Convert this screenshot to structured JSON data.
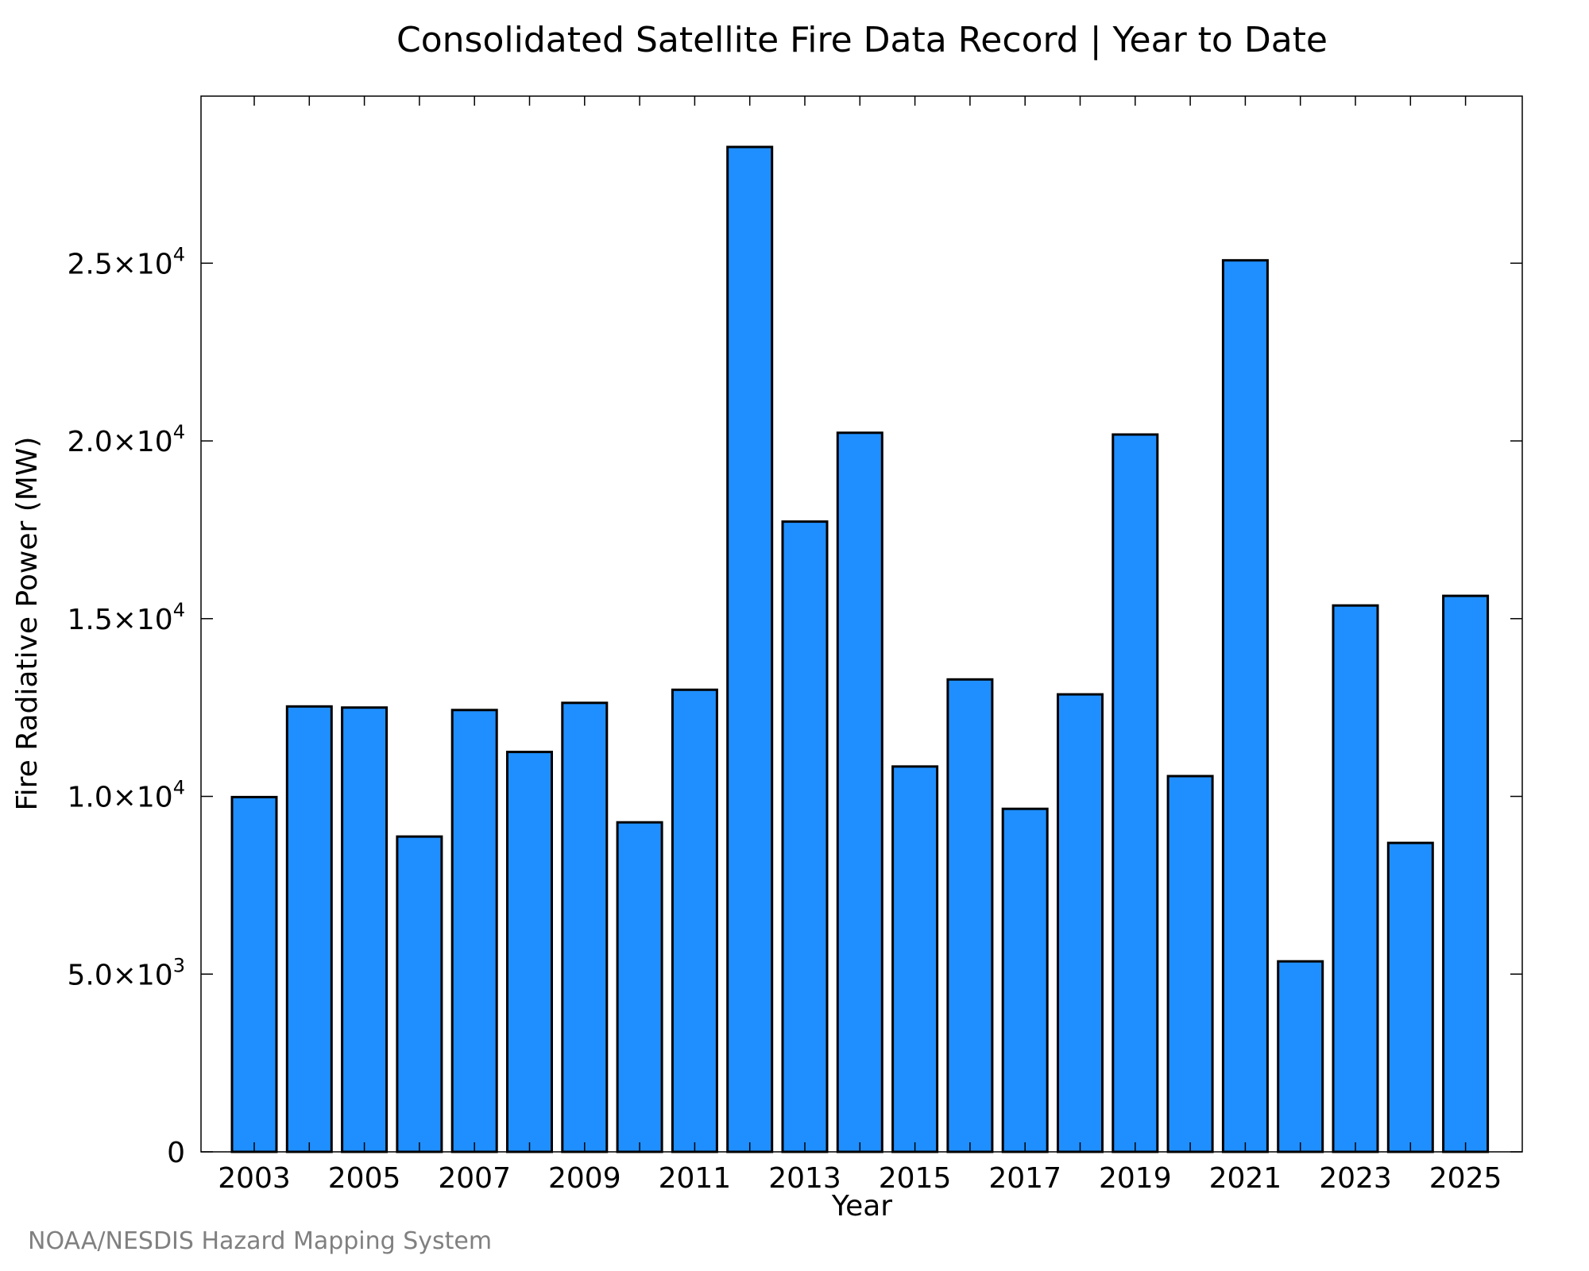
{
  "chart_data": {
    "type": "bar",
    "title": "Consolidated Satellite Fire Data Record | Year to Date",
    "xlabel": "Year",
    "ylabel": "Fire Radiative Power (MW)",
    "categories": [
      "2003",
      "2004",
      "2005",
      "2006",
      "2007",
      "2008",
      "2009",
      "2010",
      "2011",
      "2012",
      "2013",
      "2014",
      "2015",
      "2016",
      "2017",
      "2018",
      "2019",
      "2020",
      "2021",
      "2022",
      "2023",
      "2024",
      "2025"
    ],
    "values": [
      9980,
      12530,
      12500,
      8870,
      12430,
      11250,
      12630,
      9270,
      13000,
      28270,
      17730,
      20230,
      10840,
      13290,
      9650,
      12870,
      20180,
      10570,
      25080,
      5360,
      15370,
      8690,
      15640
    ],
    "ylim": [
      0,
      29700
    ],
    "yticks": [
      {
        "value": 0,
        "mantissa": "0",
        "exp": ""
      },
      {
        "value": 5000,
        "mantissa": "5.0×10",
        "exp": "3"
      },
      {
        "value": 10000,
        "mantissa": "1.0×10",
        "exp": "4"
      },
      {
        "value": 15000,
        "mantissa": "1.5×10",
        "exp": "4"
      },
      {
        "value": 20000,
        "mantissa": "2.0×10",
        "exp": "4"
      },
      {
        "value": 25000,
        "mantissa": "2.5×10",
        "exp": "4"
      }
    ],
    "xtick_labels": [
      "2003",
      "2005",
      "2007",
      "2009",
      "2011",
      "2013",
      "2015",
      "2017",
      "2019",
      "2021",
      "2023",
      "2025"
    ],
    "bar_color": "#1f8fff",
    "grid": false,
    "legend": "none"
  },
  "credit": "NOAA/NESDIS Hazard Mapping System"
}
